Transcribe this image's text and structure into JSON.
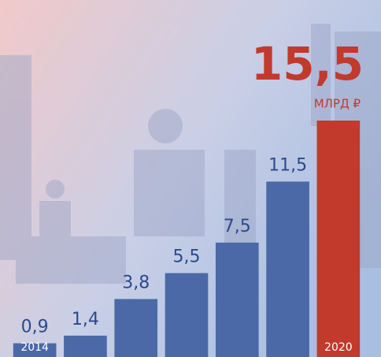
{
  "chart_data": {
    "type": "bar",
    "categories": [
      "2014",
      null,
      null,
      null,
      null,
      null,
      "2020"
    ],
    "values": [
      0.9,
      1.4,
      3.8,
      5.5,
      7.5,
      11.5,
      15.5
    ],
    "value_labels": [
      "0,9",
      "1,4",
      "3,8",
      "5,5",
      "7,5",
      "11,5",
      "15,5"
    ],
    "unit": "МЛРД ₽",
    "color": "#4a69a6",
    "highlight_color": "#c23a2c"
  }
}
